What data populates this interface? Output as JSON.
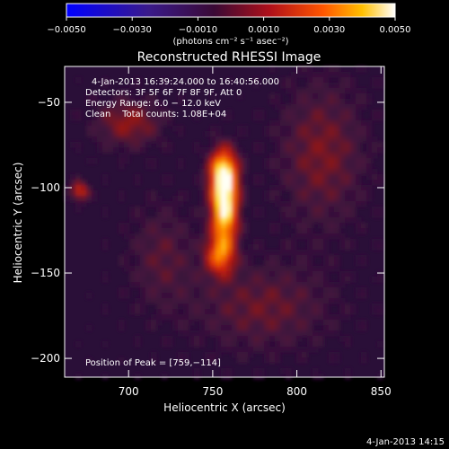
{
  "chart_data": {
    "type": "heatmap",
    "title": "Reconstructed RHESSI Image",
    "xlabel": "Heliocentric X (arcsec)",
    "ylabel": "Heliocentric Y (arcsec)",
    "xlim": [
      662,
      852
    ],
    "ylim": [
      -211,
      -29
    ],
    "x_ticks": [
      700,
      750,
      800,
      850
    ],
    "x_tick_labels": [
      "700",
      "750",
      "800",
      "850"
    ],
    "y_ticks": [
      -50,
      -100,
      -150,
      -200
    ],
    "y_tick_labels": [
      "−50",
      "−100",
      "−150",
      "−200"
    ],
    "colorbar": {
      "range": [
        -0.005,
        0.005
      ],
      "ticks": [
        -0.005,
        -0.003,
        -0.001,
        0.001,
        0.003,
        0.005
      ],
      "tick_labels": [
        "−0.0050",
        "−0.0030",
        "−0.0010",
        "0.0010",
        "0.0030",
        "0.0050"
      ],
      "units_label": "(photons cm⁻² s⁻¹ asec⁻²)",
      "colormap": "blue-purple-red-orange-yellow-white"
    },
    "annotations": {
      "time_range": "4-Jan-2013 16:39:24.000 to 16:40:56.000",
      "detectors": "Detectors: 3F 5F 6F 7F 8F 9F, Att 0",
      "energy_range": "Energy Range: 6.0 − 12.0 keV",
      "clean": "Clean    Total counts: 1.08E+04",
      "peak": "Position of Peak = [759,−114]"
    },
    "peak": {
      "x": 759,
      "y": -114
    },
    "sources": [
      {
        "x": 757,
        "y": -110,
        "sx": 5.5,
        "sy": 17,
        "amp": 1.0
      },
      {
        "x": 756,
        "y": -90,
        "sx": 6,
        "sy": 9,
        "amp": 0.55
      },
      {
        "x": 754,
        "y": -140,
        "sx": 6,
        "sy": 8,
        "amp": 0.5
      },
      {
        "x": 671,
        "y": -102,
        "sx": 4,
        "sy": 4,
        "amp": 0.45
      },
      {
        "x": 700,
        "y": -62,
        "sx": 14,
        "sy": 10,
        "amp": 0.3
      },
      {
        "x": 815,
        "y": -80,
        "sx": 18,
        "sy": 30,
        "amp": 0.25
      },
      {
        "x": 780,
        "y": -170,
        "sx": 28,
        "sy": 18,
        "amp": 0.22
      },
      {
        "x": 720,
        "y": -140,
        "sx": 14,
        "sy": 22,
        "amp": 0.18
      }
    ]
  },
  "footer": {
    "date": "4-Jan-2013 14:15"
  }
}
